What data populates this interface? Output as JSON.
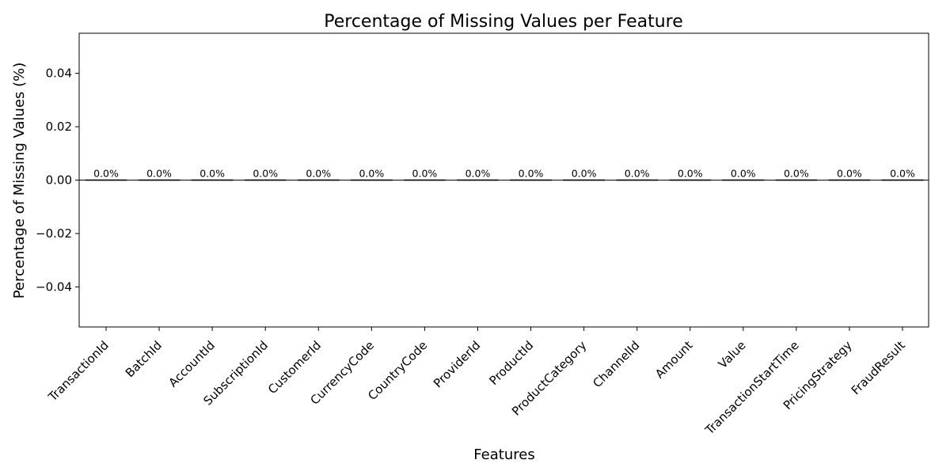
{
  "chart_data": {
    "type": "bar",
    "title": "Percentage of Missing Values per Feature",
    "xlabel": "Features",
    "ylabel": "Percentage of Missing Values (%)",
    "categories": [
      "TransactionId",
      "BatchId",
      "AccountId",
      "SubscriptionId",
      "CustomerId",
      "CurrencyCode",
      "CountryCode",
      "ProviderId",
      "ProductId",
      "ProductCategory",
      "ChannelId",
      "Amount",
      "Value",
      "TransactionStartTime",
      "PricingStrategy",
      "FraudResult"
    ],
    "values": [
      0,
      0,
      0,
      0,
      0,
      0,
      0,
      0,
      0,
      0,
      0,
      0,
      0,
      0,
      0,
      0
    ],
    "value_labels": [
      "0.0%",
      "0.0%",
      "0.0%",
      "0.0%",
      "0.0%",
      "0.0%",
      "0.0%",
      "0.0%",
      "0.0%",
      "0.0%",
      "0.0%",
      "0.0%",
      "0.0%",
      "0.0%",
      "0.0%",
      "0.0%"
    ],
    "ylim": [
      -0.055,
      0.055
    ],
    "yticks": [
      -0.04,
      -0.02,
      0.0,
      0.02,
      0.04
    ],
    "ytick_labels": [
      "−0.04",
      "−0.02",
      "0.00",
      "0.02",
      "0.04"
    ],
    "grid": false,
    "bar_color": "#87ceeb"
  }
}
